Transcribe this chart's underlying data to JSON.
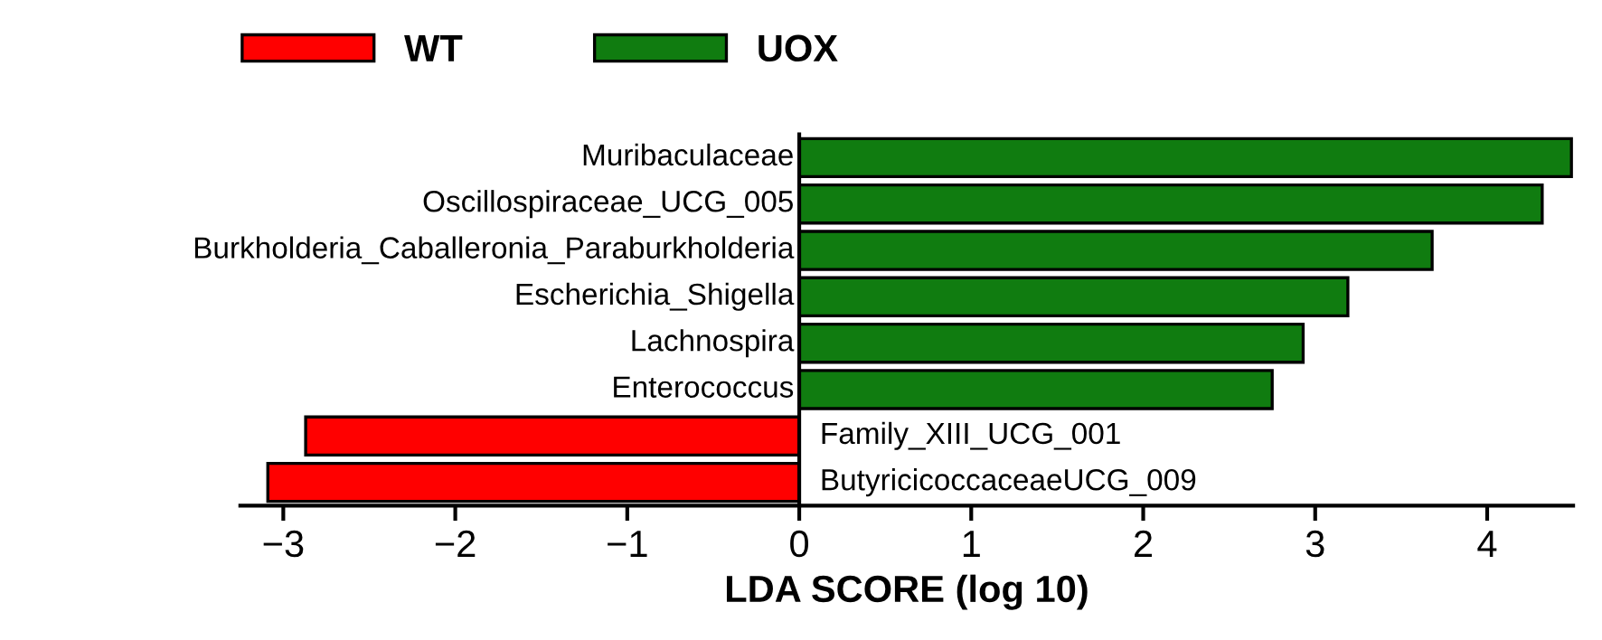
{
  "chart_data": {
    "type": "bar",
    "orientation": "horizontal",
    "xlabel": "LDA SCORE (log 10)",
    "categories": [
      "Muribaculaceae",
      "Oscillospiraceae_UCG_005",
      "Burkholderia_Caballeronia_Paraburkholderia",
      "Escherichia_Shigella",
      "Lachnospira",
      "Enterococcus",
      "Family_XIII_UCG_001",
      "ButyricicoccaceaeUCG_009"
    ],
    "series": [
      {
        "name": "WT",
        "color": "#ff0000",
        "values": [
          null,
          null,
          null,
          null,
          null,
          null,
          -2.87,
          -3.09
        ]
      },
      {
        "name": "UOX",
        "color": "#107c10",
        "values": [
          4.49,
          4.32,
          3.68,
          3.19,
          2.93,
          2.75,
          null,
          null
        ]
      }
    ],
    "xlim": [
      -3.25,
      4.5
    ],
    "xticks": [
      {
        "value": -3,
        "label": "−3"
      },
      {
        "value": -2,
        "label": "−2"
      },
      {
        "value": -1,
        "label": "−1"
      },
      0,
      1,
      2,
      3,
      4
    ],
    "grid": false,
    "legend": "top left"
  }
}
